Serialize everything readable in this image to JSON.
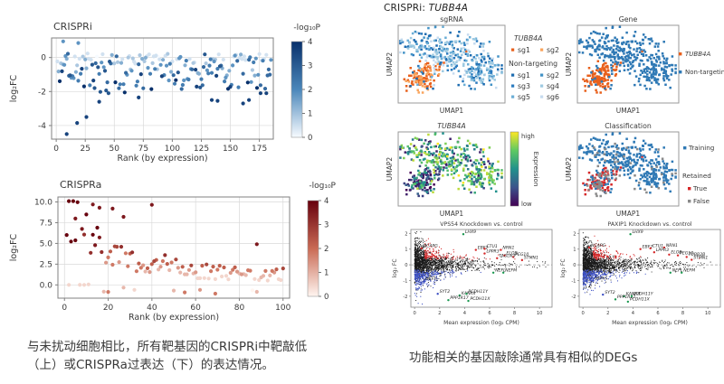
{
  "header": {
    "prefix": "CRISPRi: ",
    "gene": "TUBB4A"
  },
  "captions": {
    "left": "与未扰动细胞相比，所有靶基因的CRISPRi中靶敲低（上）或CRISPRa过表达（下）的表达情况。",
    "right": "功能相关的基因敲除通常具有相似的DEGs"
  },
  "chart_data": [
    {
      "id": "crispri-rank",
      "type": "rank_scatter",
      "title": "CRISPRi",
      "xlabel": "Rank (by expression)",
      "ylabel": "log₂FC",
      "xlim": [
        -4,
        187
      ],
      "xticks": [
        0,
        25,
        50,
        75,
        100,
        125,
        150,
        175
      ],
      "ylim": [
        -4.8,
        1.15
      ],
      "yticks": [
        0,
        -2,
        -4
      ],
      "n_points": 185,
      "seed": 11,
      "colorbar": {
        "label": "-log₁₀P",
        "ticks": [
          4,
          3,
          2,
          1,
          0
        ],
        "colors": [
          "#f7fbff",
          "#4b87ba",
          "#08306b"
        ]
      },
      "notable_points": [
        [
          6,
          0.95
        ],
        [
          19,
          0.85
        ],
        [
          9,
          -4.5
        ],
        [
          18,
          -3.85
        ],
        [
          26,
          -3.5
        ],
        [
          37,
          -2.6
        ],
        [
          71,
          -2.35
        ],
        [
          134,
          -2.5
        ],
        [
          139,
          -2.55
        ],
        [
          161,
          -2.7
        ],
        [
          166,
          -2.5
        ],
        [
          176,
          -2.1
        ],
        [
          181,
          -2.1
        ]
      ]
    },
    {
      "id": "crispra-rank",
      "type": "rank_scatter",
      "title": "CRISPRa",
      "xlabel": "Rank (by expression)",
      "ylabel": "log₂FC",
      "xlim": [
        -3,
        103
      ],
      "xticks": [
        0,
        20,
        40,
        60,
        80,
        100
      ],
      "ylim": [
        -1.6,
        10.6
      ],
      "yticks": [
        10.0,
        7.5,
        5.0,
        2.5,
        0.0
      ],
      "ytick_decimals": 1,
      "n_points": 100,
      "seed": 23,
      "colorbar": {
        "label": "-log₁₀P",
        "ticks": [
          4,
          3,
          2,
          1,
          0
        ],
        "colors": [
          "#fff5f0",
          "#c96a54",
          "#67000d"
        ]
      },
      "notable_points": [
        [
          13,
          9.7
        ],
        [
          16,
          9.3
        ],
        [
          40,
          9.65
        ],
        [
          22,
          9.2
        ],
        [
          5,
          8.0
        ],
        [
          27,
          8.2
        ],
        [
          88,
          4.9
        ],
        [
          20,
          -0.85
        ],
        [
          55,
          -0.9
        ],
        [
          62,
          -0.6
        ],
        [
          69,
          -1.05
        ],
        [
          2,
          0.0
        ],
        [
          7,
          0.0
        ],
        [
          9,
          0.0
        ]
      ]
    },
    {
      "id": "umap-sgrna",
      "type": "umap",
      "title": "sgRNA",
      "xlabel": "UMAP1",
      "ylabel": "UMAP2",
      "points": {
        "seed": 5,
        "n_target": 125,
        "n_main": 380
      },
      "legend": {
        "group1_title": "TUBB4A",
        "group1": [
          {
            "label": "sg1",
            "color": "#e8601c"
          },
          {
            "label": "sg2",
            "color": "#f9a45c"
          }
        ],
        "group2_title": "Non-targeting",
        "group2": [
          {
            "label": "sg1",
            "color": "#1d6cb0"
          },
          {
            "label": "sg2",
            "color": "#4292c6"
          },
          {
            "label": "sg3",
            "color": "#2b7bbf"
          },
          {
            "label": "sg4",
            "color": "#9ecae1"
          },
          {
            "label": "sg5",
            "color": "#6baed6"
          },
          {
            "label": "sg6",
            "color": "#c6dbef"
          }
        ]
      }
    },
    {
      "id": "umap-gene",
      "type": "umap",
      "title": "Gene",
      "xlabel": "UMAP1",
      "ylabel": "UMAP2",
      "points": {
        "seed": 5,
        "n_target": 125,
        "n_main": 380
      },
      "legend": {
        "entries": [
          {
            "label": "TUBB4A",
            "color": "#e8601c",
            "italic": true
          },
          {
            "label": "Non-targeting",
            "color": "#2f79b5"
          }
        ]
      }
    },
    {
      "id": "umap-expression",
      "type": "umap",
      "title": "TUBB4A",
      "title_italic": true,
      "xlabel": "UMAP1",
      "ylabel": "UMAP2",
      "points": {
        "seed": 5,
        "n_target": 125,
        "n_main": 380
      },
      "colorbar": {
        "label": "Expression",
        "high_label": "high",
        "low_label": "low",
        "stops": [
          "#440154",
          "#3b528b",
          "#21918c",
          "#5ec962",
          "#fde725"
        ]
      }
    },
    {
      "id": "umap-classification",
      "type": "umap",
      "title": "Classification",
      "xlabel": "UMAP1",
      "ylabel": "UMAP2",
      "points": {
        "seed": 5,
        "n_target": 125,
        "n_main": 380
      },
      "legend": {
        "entries": [
          {
            "label": "Training",
            "color": "#2f79b5"
          },
          {
            "header": "Retained"
          },
          {
            "label": "True",
            "color": "#d62728"
          },
          {
            "label": "False",
            "color": "#8a8a8a"
          }
        ]
      }
    },
    {
      "id": "ma-vps54",
      "type": "ma",
      "title": "VPS54 Knockdown vs. control",
      "xlabel": "Mean expression (log₂ CPM)",
      "ylabel": "log₂ FC",
      "xlim": [
        -0.3,
        11
      ],
      "xticks": [
        0,
        2,
        4,
        6,
        8,
        10
      ],
      "ylim": [
        -2.7,
        2.25
      ],
      "yticks": [
        2,
        1,
        0,
        -1,
        -2
      ],
      "n_points": 2300,
      "seed": 31,
      "point_color": "#1a1a1a",
      "up_color": "#d62728",
      "down_color": "#3d50c3",
      "genes": [
        {
          "name": "LHX9",
          "x": 3.9,
          "y": 1.95,
          "marker": "#1a9850"
        },
        {
          "name": "NCAPG",
          "x": 0.55,
          "y": 1.05,
          "marker": "#d62728"
        },
        {
          "name": "EBF2",
          "x": 4.9,
          "y": 0.95,
          "marker": "#d62728"
        },
        {
          "name": "CTU1",
          "x": 5.6,
          "y": 1.02,
          "marker": "#d62728"
        },
        {
          "name": "NRN1",
          "x": 6.9,
          "y": 0.95,
          "marker": "#d62728"
        },
        {
          "name": "LPPR3",
          "x": 5.6,
          "y": 0.72,
          "marker": "#d62728"
        },
        {
          "name": "ELOB",
          "x": 7.2,
          "y": 0.6,
          "marker": "#d62728"
        },
        {
          "name": "PEG10",
          "x": 7.9,
          "y": 0.5,
          "marker": "#d62728"
        },
        {
          "name": "TAGLN3",
          "x": 6.6,
          "y": 0.42,
          "marker": "#d62728"
        },
        {
          "name": "STMN1",
          "x": 8.6,
          "y": 0.3,
          "marker": "#d62728"
        },
        {
          "name": "NEFL",
          "x": 6.3,
          "y": -0.5,
          "marker": "#1a9850"
        },
        {
          "name": "NEFM",
          "x": 7.1,
          "y": -0.5,
          "marker": "#1a9850"
        },
        {
          "name": "NEFH",
          "x": 0.75,
          "y": -1.05,
          "marker": "#3d50c3"
        },
        {
          "name": "SYT2",
          "x": 1.85,
          "y": -1.85,
          "marker": "#3d50c3"
        },
        {
          "name": "KANK4",
          "x": 3.6,
          "y": -1.95,
          "marker": "#1a9850"
        },
        {
          "name": "PPP1R17",
          "x": 2.7,
          "y": -2.25,
          "marker": "#1a9850"
        },
        {
          "name": "PCDH11Y",
          "x": 4.15,
          "y": -1.85,
          "marker": "#1a9850"
        },
        {
          "name": "PCDH11X",
          "x": 4.3,
          "y": -2.3,
          "marker": "#1a9850"
        }
      ]
    },
    {
      "id": "ma-paxip1",
      "type": "ma",
      "title": "PAXIP1 Knockdown vs. control",
      "xlabel": "Mean expression (log₂ CPM)",
      "ylabel": "log₂ FC",
      "xlim": [
        -0.3,
        11
      ],
      "xticks": [
        0,
        2,
        4,
        6,
        8,
        10
      ],
      "ylim": [
        -2.7,
        2.25
      ],
      "yticks": [
        2,
        1,
        0,
        -1,
        -2
      ],
      "n_points": 2300,
      "seed": 57,
      "point_color": "#1a1a1a",
      "up_color": "#d62728",
      "down_color": "#3d50c3",
      "genes": [
        {
          "name": "LHX9",
          "x": 3.8,
          "y": 1.95,
          "marker": "#1a9850"
        },
        {
          "name": "NCAPG",
          "x": 0.5,
          "y": 1.1,
          "marker": "#d62728"
        },
        {
          "name": "EBF2",
          "x": 4.6,
          "y": 1.0,
          "marker": "#d62728"
        },
        {
          "name": "CTU1",
          "x": 5.4,
          "y": 1.05,
          "marker": "#d62728"
        },
        {
          "name": "NRN1",
          "x": 6.5,
          "y": 1.1,
          "marker": "#d62728"
        },
        {
          "name": "LPPR3",
          "x": 5.7,
          "y": 0.8,
          "marker": "#d62728"
        },
        {
          "name": "ELOB",
          "x": 6.9,
          "y": 0.65,
          "marker": "#d62728"
        },
        {
          "name": "PEG10",
          "x": 7.6,
          "y": 0.6,
          "marker": "#d62728"
        },
        {
          "name": "TUBB2B",
          "x": 8.3,
          "y": 0.5,
          "marker": "#d62728"
        },
        {
          "name": "STMN1",
          "x": 8.7,
          "y": 0.32,
          "marker": "#d62728"
        },
        {
          "name": "NEFL",
          "x": 7.0,
          "y": -0.5,
          "marker": "#1a9850"
        },
        {
          "name": "NEFM",
          "x": 7.9,
          "y": -0.5,
          "marker": "#1a9850"
        },
        {
          "name": "NEFH",
          "x": 0.8,
          "y": -1.0,
          "marker": "#3d50c3"
        },
        {
          "name": "SYT2",
          "x": 1.6,
          "y": -1.9,
          "marker": "#3d50c3"
        },
        {
          "name": "KANK4",
          "x": 3.3,
          "y": -2.0,
          "marker": "#1a9850"
        },
        {
          "name": "PPP1R17",
          "x": 2.6,
          "y": -2.2,
          "marker": "#1a9850"
        },
        {
          "name": "PCDH11Y",
          "x": 3.9,
          "y": -2.0,
          "marker": "#1a9850"
        },
        {
          "name": "PCDH11X",
          "x": 3.6,
          "y": -2.35,
          "marker": "#1a9850"
        }
      ]
    }
  ]
}
